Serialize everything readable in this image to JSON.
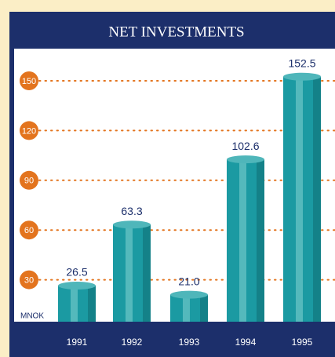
{
  "chart_data": {
    "type": "bar",
    "title": "NET INVESTMENTS",
    "y_label": "MNOK",
    "categories": [
      "1991",
      "1992",
      "1993",
      "1994",
      "1995"
    ],
    "values": [
      26.5,
      63.3,
      21.0,
      102.6,
      152.5
    ],
    "value_labels": [
      "26.5",
      "63.3",
      "21.0",
      "102.6",
      "152.5"
    ],
    "color": "#1b9aa2",
    "tick_color": "#e3741e",
    "ylim": [
      0,
      150
    ],
    "yticks": [
      30,
      60,
      90,
      120,
      150
    ],
    "grid": true
  }
}
